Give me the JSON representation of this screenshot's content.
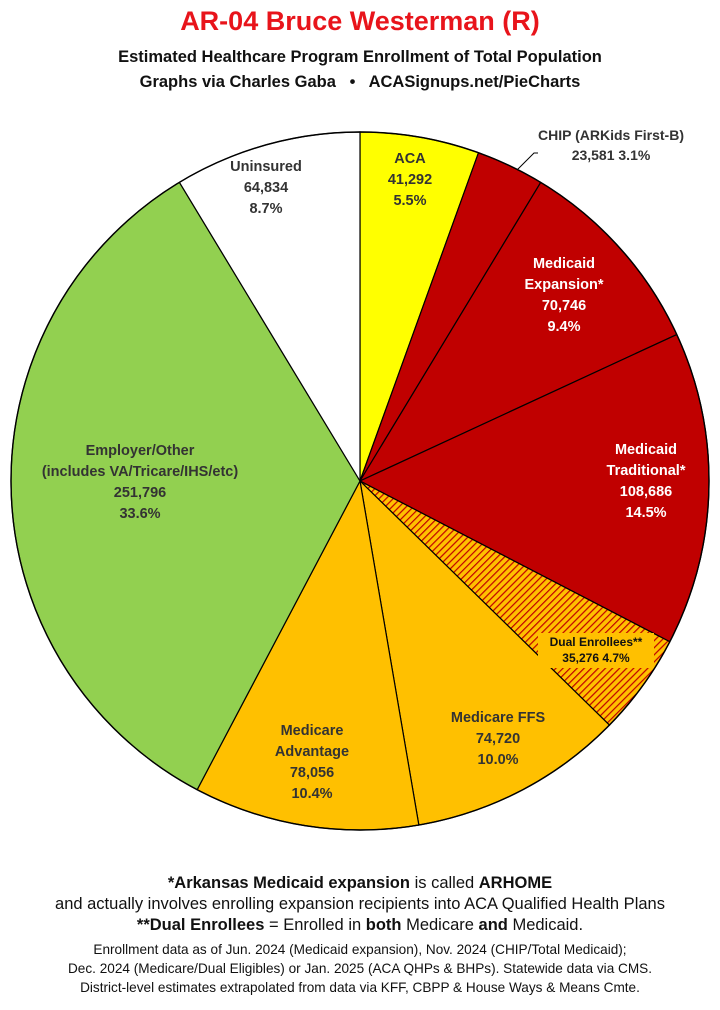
{
  "title": "AR-04 Bruce Westerman (R)",
  "subtitle": "Estimated Healthcare Program Enrollment of Total Population",
  "credit": {
    "left": "Graphs via Charles Gaba",
    "separator": "•",
    "right": "ACASignups.net/PieCharts"
  },
  "colors": {
    "aca": "#ffff00",
    "medicaid": "#c00000",
    "medicare": "#ffc000",
    "employer": "#92d050",
    "uninsured": "#ffffff",
    "title": "#e8141b"
  },
  "chart_data": {
    "type": "pie",
    "start_angle_deg": 0,
    "direction": "clockwise",
    "slices": [
      {
        "key": "aca",
        "lines": [
          "ACA",
          "41,292",
          "5.5%"
        ],
        "value": 41292,
        "percent": 5.5,
        "color": "#ffff00",
        "text_color": "#333333",
        "pattern": false
      },
      {
        "key": "chip",
        "lines": [
          "CHIP (ARKids First-B)",
          "23,581 3.1%"
        ],
        "value": 23581,
        "percent": 3.1,
        "color": "#c00000",
        "text_color": "#333333",
        "pattern": false
      },
      {
        "key": "medicaid-expansion",
        "lines": [
          "Medicaid",
          "Expansion*",
          "70,746",
          "9.4%"
        ],
        "value": 70746,
        "percent": 9.4,
        "color": "#c00000",
        "text_color": "#ffffff",
        "pattern": false
      },
      {
        "key": "medicaid-traditional",
        "lines": [
          "Medicaid",
          "Traditional*",
          "108,686",
          "14.5%"
        ],
        "value": 108686,
        "percent": 14.5,
        "color": "#c00000",
        "text_color": "#ffffff",
        "pattern": false
      },
      {
        "key": "dual-enrollees",
        "lines": [
          "Dual Enrollees**",
          "35,276 4.7%"
        ],
        "value": 35276,
        "percent": 4.7,
        "color": "#ffc000",
        "text_color": "#111111",
        "pattern": true
      },
      {
        "key": "medicare-ffs",
        "lines": [
          "Medicare FFS",
          "74,720",
          "10.0%"
        ],
        "value": 74720,
        "percent": 10.0,
        "color": "#ffc000",
        "text_color": "#333333",
        "pattern": false
      },
      {
        "key": "medicare-advantage",
        "lines": [
          "Medicare",
          "Advantage",
          "78,056",
          "10.4%"
        ],
        "value": 78056,
        "percent": 10.4,
        "color": "#ffc000",
        "text_color": "#333333",
        "pattern": false
      },
      {
        "key": "employer-other",
        "lines": [
          "Employer/Other",
          "(includes VA/Tricare/IHS/etc)",
          "251,796",
          "33.6%"
        ],
        "value": 251796,
        "percent": 33.6,
        "color": "#92d050",
        "text_color": "#333333",
        "pattern": false
      },
      {
        "key": "uninsured",
        "lines": [
          "Uninsured",
          "64,834",
          "8.7%"
        ],
        "value": 64834,
        "percent": 8.7,
        "color": "#ffffff",
        "text_color": "#333333",
        "pattern": false
      }
    ]
  },
  "notes": {
    "line1": {
      "a": "*Arkansas Medicaid expansion",
      "b": " is called ",
      "c": "ARHOME"
    },
    "line2": "and actually involves enrolling expansion recipients into ACA Qualified Health Plans",
    "line3": {
      "a": "**Dual Enrollees",
      "b": " = Enrolled in ",
      "c": "both",
      "d": " Medicare ",
      "e": "and",
      "f": " Medicaid."
    },
    "source1": "Enrollment data as of Jun. 2024 (Medicaid expansion), Nov. 2024 (CHIP/Total Medicaid);",
    "source2": "Dec. 2024 (Medicare/Dual Eligibles) or Jan. 2025 (ACA QHPs & BHPs). Statewide data via CMS.",
    "source3": "District-level estimates extrapolated from data via KFF, CBPP & House Ways & Means Cmte."
  }
}
